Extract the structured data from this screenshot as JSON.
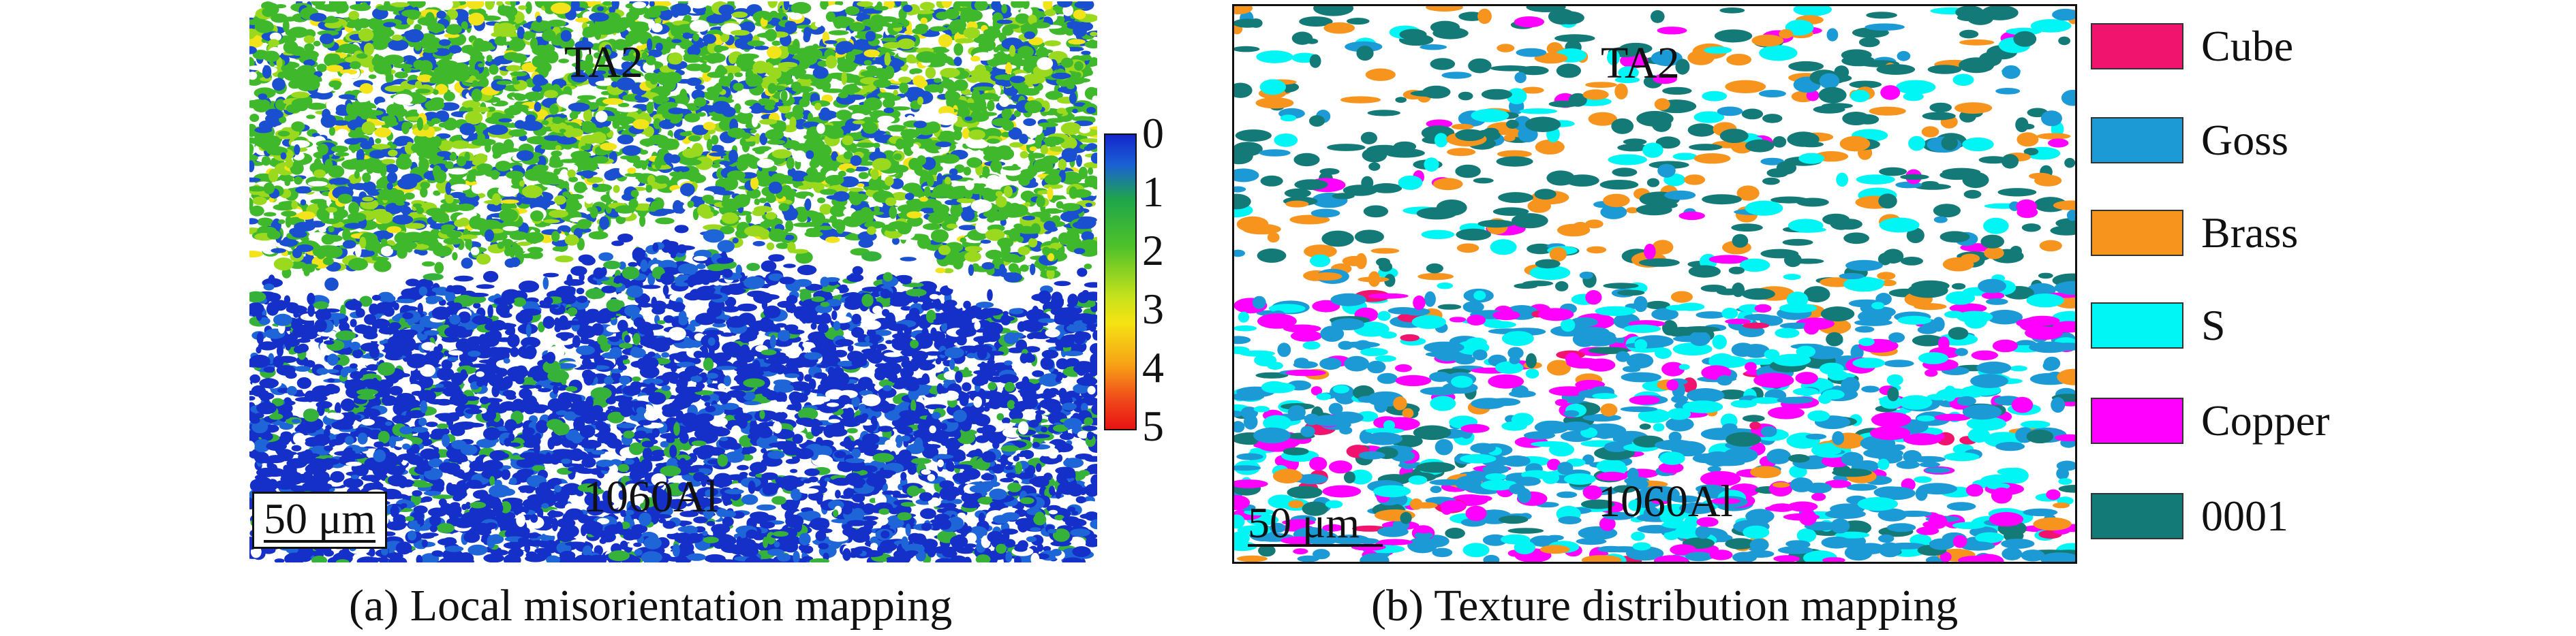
{
  "panel_a": {
    "top_label": "TA2",
    "bottom_label": "1060Al",
    "scale_bar": "50 μm",
    "caption": "(a) Local misorientation mapping",
    "colorbar": {
      "ticks": [
        "0",
        "1",
        "2",
        "3",
        "4",
        "5"
      ],
      "colors": [
        "#1326c9",
        "#1fa64a",
        "#c6e21b",
        "#f7a216",
        "#e81313"
      ]
    }
  },
  "panel_b": {
    "top_label": "TA2",
    "bottom_label": "1060Al",
    "scale_bar": "50 μm",
    "caption": "(b) Texture distribution mapping",
    "legend": [
      {
        "label": "Cube",
        "color": "#f0146e"
      },
      {
        "label": "Goss",
        "color": "#1c9ad6"
      },
      {
        "label": "Brass",
        "color": "#f7941d"
      },
      {
        "label": "S",
        "color": "#00f5f5"
      },
      {
        "label": "Copper",
        "color": "#ff00ff"
      },
      {
        "label": "0001",
        "color": "#137a78"
      }
    ]
  }
}
